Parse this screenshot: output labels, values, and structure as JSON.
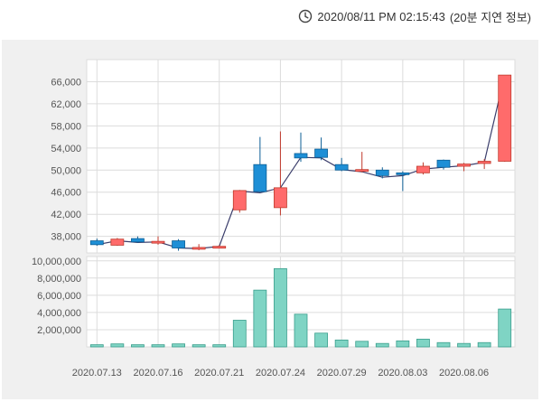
{
  "header": {
    "timestamp": "2020/08/11 PM 02:15:43",
    "delay_note": "(20분 지연 정보)",
    "clock_icon": "clock-icon"
  },
  "colors": {
    "up": "#ff6b6b",
    "up_stroke": "#c0392b",
    "down": "#1e8fd6",
    "down_stroke": "#0d5f96",
    "ma_line": "#3a3d6b",
    "volume": "#7fd4c4",
    "volume_stroke": "#3a9e8c",
    "grid": "#dcdcdc",
    "plot_bg": "#ffffff",
    "panel_bg": "#f0f0f0"
  },
  "chart_data": [
    {
      "type": "candlestick",
      "ylim": [
        35000,
        70000
      ],
      "yticks": [
        "38,000",
        "42,000",
        "46,000",
        "50,000",
        "54,000",
        "58,000",
        "62,000",
        "66,000"
      ],
      "ytick_values": [
        38000,
        42000,
        46000,
        50000,
        54000,
        58000,
        62000,
        66000
      ],
      "x_tick_labels": [
        "2020.07.13",
        "2020.07.16",
        "2020.07.21",
        "2020.07.24",
        "2020.07.29",
        "2020.08.03",
        "2020.08.06"
      ],
      "x_tick_indices": [
        0,
        3,
        6,
        9,
        12,
        15,
        18
      ],
      "candles": [
        {
          "open": 37200,
          "close": 36500,
          "high": 37600,
          "low": 36300,
          "dir": "down"
        },
        {
          "open": 36400,
          "close": 37500,
          "high": 37700,
          "low": 36300,
          "dir": "up"
        },
        {
          "open": 37600,
          "close": 37000,
          "high": 38000,
          "low": 36800,
          "dir": "down"
        },
        {
          "open": 36800,
          "close": 37100,
          "high": 38000,
          "low": 36500,
          "dir": "up"
        },
        {
          "open": 37200,
          "close": 35900,
          "high": 37500,
          "low": 35400,
          "dir": "down"
        },
        {
          "open": 35800,
          "close": 36000,
          "high": 36600,
          "low": 35500,
          "dir": "up"
        },
        {
          "open": 35900,
          "close": 36200,
          "high": 36400,
          "low": 35800,
          "dir": "up"
        },
        {
          "open": 42800,
          "close": 46300,
          "high": 46400,
          "low": 42300,
          "dir": "up"
        },
        {
          "open": 51000,
          "close": 46100,
          "high": 56000,
          "low": 46000,
          "dir": "down"
        },
        {
          "open": 43200,
          "close": 46800,
          "high": 57000,
          "low": 41800,
          "dir": "up"
        },
        {
          "open": 53000,
          "close": 52200,
          "high": 56800,
          "low": 51500,
          "dir": "down"
        },
        {
          "open": 53800,
          "close": 52300,
          "high": 55900,
          "low": 51800,
          "dir": "down"
        },
        {
          "open": 51000,
          "close": 50000,
          "high": 52200,
          "low": 49800,
          "dir": "down"
        },
        {
          "open": 49900,
          "close": 50100,
          "high": 53300,
          "low": 49600,
          "dir": "up"
        },
        {
          "open": 50000,
          "close": 49000,
          "high": 50500,
          "low": 48500,
          "dir": "down"
        },
        {
          "open": 49500,
          "close": 49200,
          "high": 49800,
          "low": 46200,
          "dir": "down"
        },
        {
          "open": 49500,
          "close": 50700,
          "high": 51400,
          "low": 49200,
          "dir": "up"
        },
        {
          "open": 51800,
          "close": 50500,
          "high": 51900,
          "low": 50100,
          "dir": "down"
        },
        {
          "open": 50700,
          "close": 51100,
          "high": 51300,
          "low": 49800,
          "dir": "up"
        },
        {
          "open": 51200,
          "close": 51600,
          "high": 52000,
          "low": 50200,
          "dir": "up"
        },
        {
          "open": 51600,
          "close": 67200,
          "high": 67200,
          "low": 51500,
          "dir": "up"
        }
      ],
      "ma_line": [
        36500,
        37200,
        36900,
        37000,
        35900,
        35800,
        36200,
        46200,
        45900,
        46800,
        52300,
        52200,
        50100,
        49700,
        48700,
        49000,
        50200,
        50500,
        50800,
        51400,
        67200
      ]
    },
    {
      "type": "bar",
      "ylim": [
        0,
        10500000
      ],
      "yticks": [
        "2,000,000",
        "4,000,000",
        "6,000,000",
        "8,000,000",
        "10,000,000"
      ],
      "ytick_values": [
        2000000,
        4000000,
        6000000,
        8000000,
        10000000
      ],
      "values": [
        250000,
        350000,
        250000,
        250000,
        350000,
        250000,
        250000,
        3100000,
        6600000,
        9100000,
        3800000,
        1600000,
        800000,
        650000,
        400000,
        700000,
        900000,
        500000,
        400000,
        500000,
        4400000
      ]
    }
  ]
}
